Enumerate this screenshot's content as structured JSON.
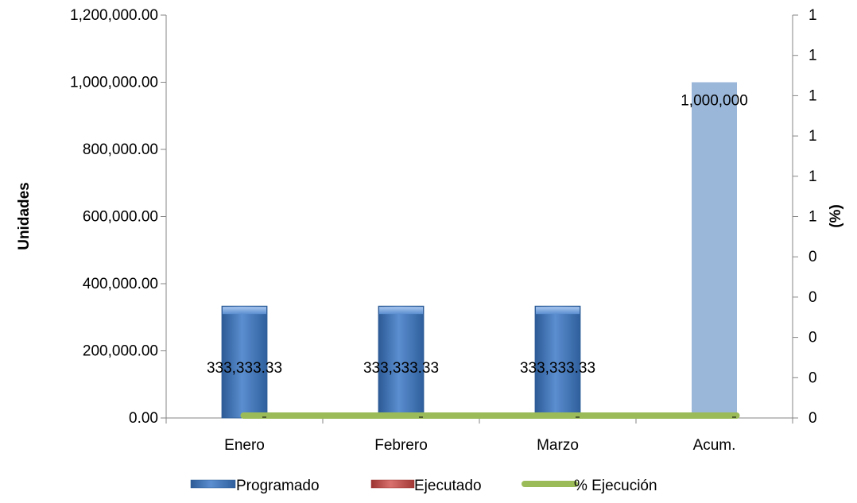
{
  "chart_data": {
    "type": "bar",
    "categories": [
      "Enero",
      "Febrero",
      "Marzo",
      "Acum."
    ],
    "series": [
      {
        "name": "Programado",
        "axis": "left",
        "values": [
          333333.33,
          333333.33,
          333333.33,
          1000000
        ]
      },
      {
        "name": "Ejecutado",
        "axis": "left",
        "values": [
          0,
          0,
          0,
          0
        ]
      },
      {
        "name": "% Ejecución",
        "axis": "right",
        "type": "line",
        "values": [
          0,
          0,
          0,
          0
        ]
      }
    ],
    "data_labels": [
      "333,333.33",
      "333,333.33",
      "333,333.33",
      "1,000,000"
    ],
    "ylabel": "Unidades",
    "y2label": "(%)",
    "ylim": [
      0,
      1200000
    ],
    "yticks": [
      "0.00",
      "200,000.00",
      "400,000.00",
      "600,000.00",
      "800,000.00",
      "1,000,000.00",
      "1,200,000.00"
    ],
    "y2ticks": [
      "0",
      "0",
      "0",
      "0",
      "0",
      "1",
      "1",
      "1",
      "1",
      "1",
      "1"
    ],
    "grid": false,
    "legend_position": "bottom",
    "colors": {
      "programado": "#4f81bd",
      "programado_light": "#95b3d7",
      "ejecutado": "#c0504d",
      "ejecucion_line": "#9bbb59"
    }
  }
}
